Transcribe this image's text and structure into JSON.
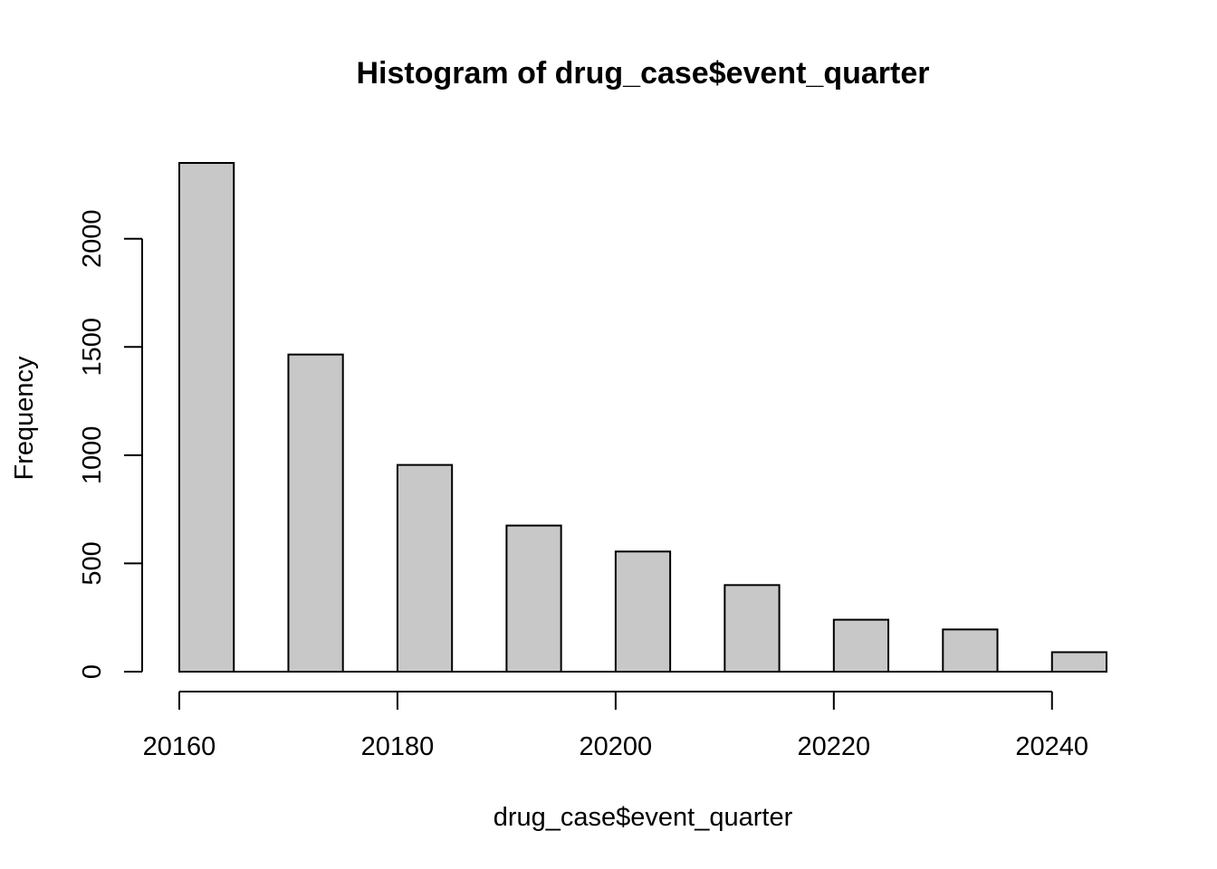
{
  "chart_data": {
    "type": "bar",
    "title": "Histogram of drug_case$event_quarter",
    "xlabel": "drug_case$event_quarter",
    "ylabel": "Frequency",
    "bins": [
      {
        "x0": 20160,
        "x1": 20165,
        "value": 2350
      },
      {
        "x0": 20170,
        "x1": 20175,
        "value": 1465
      },
      {
        "x0": 20180,
        "x1": 20185,
        "value": 955
      },
      {
        "x0": 20190,
        "x1": 20195,
        "value": 675
      },
      {
        "x0": 20200,
        "x1": 20205,
        "value": 555
      },
      {
        "x0": 20210,
        "x1": 20215,
        "value": 400
      },
      {
        "x0": 20220,
        "x1": 20225,
        "value": 240
      },
      {
        "x0": 20230,
        "x1": 20235,
        "value": 195
      },
      {
        "x0": 20240,
        "x1": 20245,
        "value": 90
      }
    ],
    "x_ticks": [
      20160,
      20180,
      20200,
      20220,
      20240
    ],
    "x_tick_labels": [
      "20160",
      "20180",
      "20200",
      "20220",
      "20240"
    ],
    "y_ticks": [
      0,
      500,
      1000,
      1500,
      2000
    ],
    "y_tick_labels": [
      "0",
      "500",
      "1000",
      "1500",
      "2000"
    ],
    "xlim": [
      20160,
      20245
    ],
    "ylim": [
      0,
      2350
    ],
    "grid": false,
    "colors": {
      "bar_fill": "#c8c8c8",
      "bar_stroke": "#000000"
    }
  }
}
